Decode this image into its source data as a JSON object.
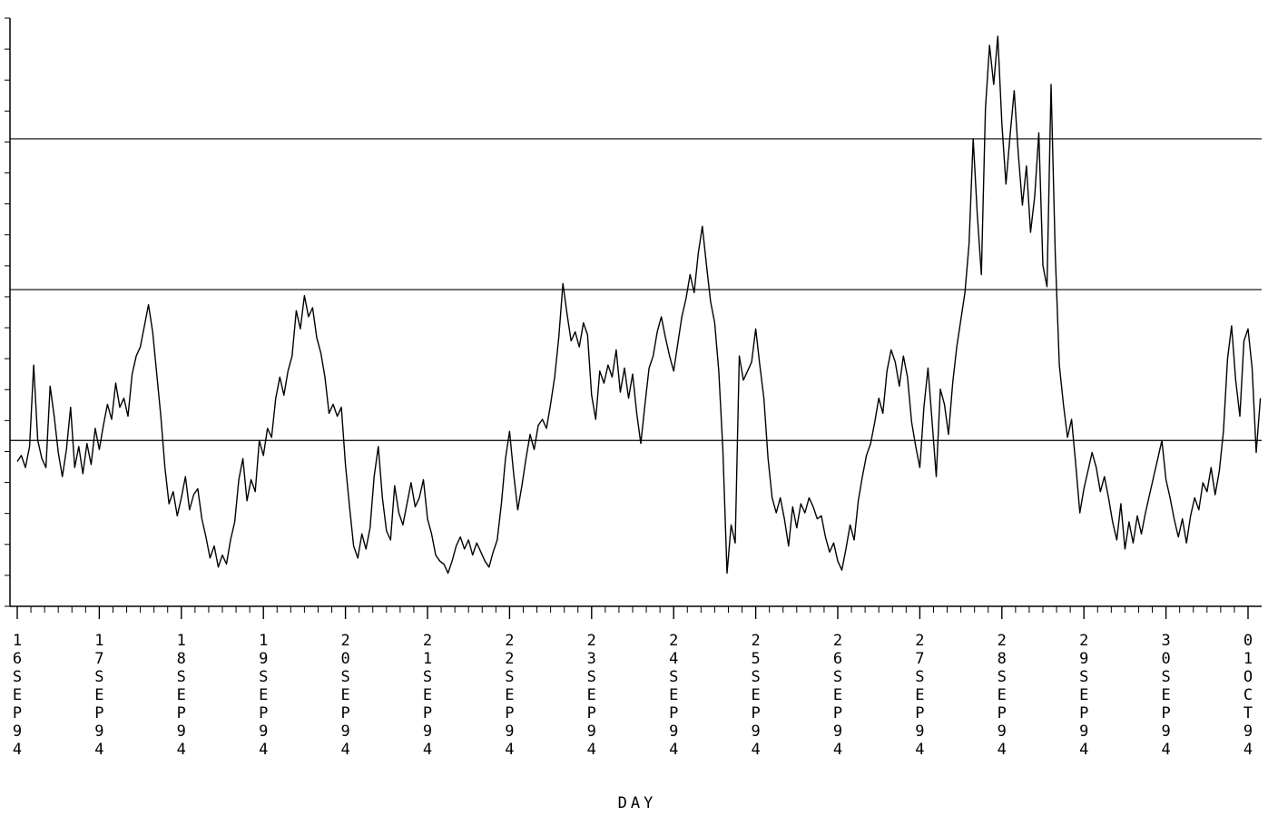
{
  "chart_data": {
    "type": "line",
    "title": "",
    "xlabel": "DAY",
    "ylabel": "",
    "x_tick_labels": [
      "16SEP94",
      "17SEP94",
      "18SEP94",
      "19SEP94",
      "20SEP94",
      "21SEP94",
      "22SEP94",
      "23SEP94",
      "24SEP94",
      "25SEP94",
      "26SEP94",
      "27SEP94",
      "28SEP94",
      "29SEP94",
      "30SEP94",
      "01OCT94"
    ],
    "xlim": [
      0,
      15.15
    ],
    "ylim": [
      0,
      19.5
    ],
    "y_minor_ticks": 19,
    "reference_lines": [
      5.5,
      10.5,
      15.5
    ],
    "grid": false,
    "series": [
      {
        "values": [
          [
            0.0,
            4.8
          ],
          [
            0.05,
            5.0
          ],
          [
            0.1,
            4.6
          ],
          [
            0.15,
            5.3
          ],
          [
            0.2,
            8.0
          ],
          [
            0.25,
            5.5
          ],
          [
            0.3,
            4.9
          ],
          [
            0.35,
            4.6
          ],
          [
            0.4,
            7.3
          ],
          [
            0.45,
            6.3
          ],
          [
            0.5,
            5.1
          ],
          [
            0.55,
            4.3
          ],
          [
            0.6,
            5.2
          ],
          [
            0.65,
            6.6
          ],
          [
            0.7,
            4.6
          ],
          [
            0.75,
            5.3
          ],
          [
            0.8,
            4.4
          ],
          [
            0.85,
            5.4
          ],
          [
            0.9,
            4.7
          ],
          [
            0.95,
            5.9
          ],
          [
            1.0,
            5.2
          ],
          [
            1.05,
            6.0
          ],
          [
            1.1,
            6.7
          ],
          [
            1.15,
            6.2
          ],
          [
            1.2,
            7.4
          ],
          [
            1.25,
            6.6
          ],
          [
            1.3,
            6.9
          ],
          [
            1.35,
            6.3
          ],
          [
            1.4,
            7.7
          ],
          [
            1.45,
            8.3
          ],
          [
            1.5,
            8.6
          ],
          [
            1.55,
            9.3
          ],
          [
            1.6,
            10.0
          ],
          [
            1.65,
            9.1
          ],
          [
            1.7,
            7.7
          ],
          [
            1.75,
            6.3
          ],
          [
            1.8,
            4.6
          ],
          [
            1.85,
            3.4
          ],
          [
            1.9,
            3.8
          ],
          [
            1.95,
            3.0
          ],
          [
            2.0,
            3.6
          ],
          [
            2.05,
            4.3
          ],
          [
            2.1,
            3.2
          ],
          [
            2.15,
            3.7
          ],
          [
            2.2,
            3.9
          ],
          [
            2.25,
            2.9
          ],
          [
            2.3,
            2.3
          ],
          [
            2.35,
            1.6
          ],
          [
            2.4,
            2.0
          ],
          [
            2.45,
            1.3
          ],
          [
            2.5,
            1.7
          ],
          [
            2.55,
            1.4
          ],
          [
            2.6,
            2.2
          ],
          [
            2.65,
            2.8
          ],
          [
            2.7,
            4.2
          ],
          [
            2.75,
            4.9
          ],
          [
            2.8,
            3.5
          ],
          [
            2.85,
            4.2
          ],
          [
            2.9,
            3.8
          ],
          [
            2.95,
            5.5
          ],
          [
            3.0,
            5.0
          ],
          [
            3.05,
            5.9
          ],
          [
            3.1,
            5.6
          ],
          [
            3.15,
            6.9
          ],
          [
            3.2,
            7.6
          ],
          [
            3.25,
            7.0
          ],
          [
            3.3,
            7.8
          ],
          [
            3.35,
            8.3
          ],
          [
            3.4,
            9.8
          ],
          [
            3.45,
            9.2
          ],
          [
            3.5,
            10.3
          ],
          [
            3.55,
            9.6
          ],
          [
            3.6,
            9.9
          ],
          [
            3.65,
            8.9
          ],
          [
            3.7,
            8.4
          ],
          [
            3.75,
            7.6
          ],
          [
            3.8,
            6.4
          ],
          [
            3.85,
            6.7
          ],
          [
            3.9,
            6.3
          ],
          [
            3.95,
            6.6
          ],
          [
            4.0,
            4.7
          ],
          [
            4.05,
            3.3
          ],
          [
            4.1,
            2.0
          ],
          [
            4.15,
            1.6
          ],
          [
            4.2,
            2.4
          ],
          [
            4.25,
            1.9
          ],
          [
            4.3,
            2.6
          ],
          [
            4.35,
            4.3
          ],
          [
            4.4,
            5.3
          ],
          [
            4.45,
            3.6
          ],
          [
            4.5,
            2.5
          ],
          [
            4.55,
            2.2
          ],
          [
            4.6,
            4.0
          ],
          [
            4.65,
            3.1
          ],
          [
            4.7,
            2.7
          ],
          [
            4.75,
            3.4
          ],
          [
            4.8,
            4.1
          ],
          [
            4.85,
            3.3
          ],
          [
            4.9,
            3.6
          ],
          [
            4.95,
            4.2
          ],
          [
            5.0,
            2.9
          ],
          [
            5.05,
            2.4
          ],
          [
            5.1,
            1.7
          ],
          [
            5.15,
            1.5
          ],
          [
            5.2,
            1.4
          ],
          [
            5.25,
            1.1
          ],
          [
            5.3,
            1.5
          ],
          [
            5.35,
            2.0
          ],
          [
            5.4,
            2.3
          ],
          [
            5.45,
            1.9
          ],
          [
            5.5,
            2.2
          ],
          [
            5.55,
            1.7
          ],
          [
            5.6,
            2.1
          ],
          [
            5.65,
            1.8
          ],
          [
            5.7,
            1.5
          ],
          [
            5.75,
            1.3
          ],
          [
            5.8,
            1.8
          ],
          [
            5.85,
            2.2
          ],
          [
            5.9,
            3.4
          ],
          [
            5.95,
            4.9
          ],
          [
            6.0,
            5.8
          ],
          [
            6.05,
            4.4
          ],
          [
            6.1,
            3.2
          ],
          [
            6.15,
            4.0
          ],
          [
            6.2,
            4.9
          ],
          [
            6.25,
            5.7
          ],
          [
            6.3,
            5.2
          ],
          [
            6.35,
            6.0
          ],
          [
            6.4,
            6.2
          ],
          [
            6.45,
            5.9
          ],
          [
            6.5,
            6.7
          ],
          [
            6.55,
            7.6
          ],
          [
            6.6,
            8.9
          ],
          [
            6.65,
            10.7
          ],
          [
            6.7,
            9.7
          ],
          [
            6.75,
            8.8
          ],
          [
            6.8,
            9.1
          ],
          [
            6.85,
            8.6
          ],
          [
            6.9,
            9.4
          ],
          [
            6.95,
            9.0
          ],
          [
            7.0,
            7.0
          ],
          [
            7.05,
            6.2
          ],
          [
            7.1,
            7.8
          ],
          [
            7.15,
            7.4
          ],
          [
            7.2,
            8.0
          ],
          [
            7.25,
            7.6
          ],
          [
            7.3,
            8.5
          ],
          [
            7.35,
            7.1
          ],
          [
            7.4,
            7.9
          ],
          [
            7.45,
            6.9
          ],
          [
            7.5,
            7.7
          ],
          [
            7.55,
            6.4
          ],
          [
            7.6,
            5.4
          ],
          [
            7.65,
            6.7
          ],
          [
            7.7,
            7.9
          ],
          [
            7.75,
            8.3
          ],
          [
            7.8,
            9.1
          ],
          [
            7.85,
            9.6
          ],
          [
            7.9,
            8.9
          ],
          [
            7.95,
            8.3
          ],
          [
            8.0,
            7.8
          ],
          [
            8.05,
            8.7
          ],
          [
            8.1,
            9.6
          ],
          [
            8.15,
            10.2
          ],
          [
            8.2,
            11.0
          ],
          [
            8.25,
            10.4
          ],
          [
            8.3,
            11.7
          ],
          [
            8.35,
            12.6
          ],
          [
            8.4,
            11.3
          ],
          [
            8.45,
            10.1
          ],
          [
            8.5,
            9.4
          ],
          [
            8.55,
            7.8
          ],
          [
            8.6,
            5.2
          ],
          [
            8.65,
            1.1
          ],
          [
            8.7,
            2.7
          ],
          [
            8.75,
            2.1
          ],
          [
            8.8,
            8.3
          ],
          [
            8.85,
            7.5
          ],
          [
            8.9,
            7.8
          ],
          [
            8.95,
            8.1
          ],
          [
            9.0,
            9.2
          ],
          [
            9.05,
            8.0
          ],
          [
            9.1,
            6.9
          ],
          [
            9.15,
            4.9
          ],
          [
            9.2,
            3.6
          ],
          [
            9.25,
            3.1
          ],
          [
            9.3,
            3.6
          ],
          [
            9.35,
            2.9
          ],
          [
            9.4,
            2.0
          ],
          [
            9.45,
            3.3
          ],
          [
            9.5,
            2.6
          ],
          [
            9.55,
            3.4
          ],
          [
            9.6,
            3.1
          ],
          [
            9.65,
            3.6
          ],
          [
            9.7,
            3.3
          ],
          [
            9.75,
            2.9
          ],
          [
            9.8,
            3.0
          ],
          [
            9.85,
            2.3
          ],
          [
            9.9,
            1.8
          ],
          [
            9.95,
            2.1
          ],
          [
            10.0,
            1.5
          ],
          [
            10.05,
            1.2
          ],
          [
            10.1,
            1.9
          ],
          [
            10.15,
            2.7
          ],
          [
            10.2,
            2.2
          ],
          [
            10.25,
            3.5
          ],
          [
            10.3,
            4.3
          ],
          [
            10.35,
            5.0
          ],
          [
            10.4,
            5.4
          ],
          [
            10.45,
            6.1
          ],
          [
            10.5,
            6.9
          ],
          [
            10.55,
            6.4
          ],
          [
            10.6,
            7.8
          ],
          [
            10.65,
            8.5
          ],
          [
            10.7,
            8.1
          ],
          [
            10.75,
            7.3
          ],
          [
            10.8,
            8.3
          ],
          [
            10.85,
            7.6
          ],
          [
            10.9,
            6.1
          ],
          [
            10.95,
            5.3
          ],
          [
            11.0,
            4.6
          ],
          [
            11.05,
            6.6
          ],
          [
            11.1,
            7.9
          ],
          [
            11.15,
            6.1
          ],
          [
            11.2,
            4.3
          ],
          [
            11.25,
            7.2
          ],
          [
            11.3,
            6.7
          ],
          [
            11.35,
            5.7
          ],
          [
            11.4,
            7.4
          ],
          [
            11.45,
            8.6
          ],
          [
            11.5,
            9.5
          ],
          [
            11.55,
            10.4
          ],
          [
            11.6,
            12.0
          ],
          [
            11.65,
            15.5
          ],
          [
            11.7,
            13.0
          ],
          [
            11.75,
            11.0
          ],
          [
            11.8,
            16.5
          ],
          [
            11.85,
            18.6
          ],
          [
            11.9,
            17.3
          ],
          [
            11.95,
            18.9
          ],
          [
            12.0,
            16.0
          ],
          [
            12.05,
            14.0
          ],
          [
            12.1,
            15.6
          ],
          [
            12.15,
            17.1
          ],
          [
            12.2,
            15.0
          ],
          [
            12.25,
            13.3
          ],
          [
            12.3,
            14.6
          ],
          [
            12.35,
            12.4
          ],
          [
            12.4,
            13.6
          ],
          [
            12.45,
            15.7
          ],
          [
            12.5,
            11.3
          ],
          [
            12.55,
            10.6
          ],
          [
            12.6,
            17.3
          ],
          [
            12.65,
            11.7
          ],
          [
            12.7,
            8.0
          ],
          [
            12.75,
            6.7
          ],
          [
            12.8,
            5.6
          ],
          [
            12.85,
            6.2
          ],
          [
            12.9,
            4.7
          ],
          [
            12.95,
            3.1
          ],
          [
            13.0,
            3.9
          ],
          [
            13.05,
            4.5
          ],
          [
            13.1,
            5.1
          ],
          [
            13.15,
            4.6
          ],
          [
            13.2,
            3.8
          ],
          [
            13.25,
            4.3
          ],
          [
            13.3,
            3.6
          ],
          [
            13.35,
            2.8
          ],
          [
            13.4,
            2.2
          ],
          [
            13.45,
            3.4
          ],
          [
            13.5,
            1.9
          ],
          [
            13.55,
            2.8
          ],
          [
            13.6,
            2.1
          ],
          [
            13.65,
            3.0
          ],
          [
            13.7,
            2.4
          ],
          [
            13.75,
            3.1
          ],
          [
            13.8,
            3.7
          ],
          [
            13.85,
            4.3
          ],
          [
            13.9,
            4.9
          ],
          [
            13.95,
            5.5
          ],
          [
            14.0,
            4.2
          ],
          [
            14.05,
            3.6
          ],
          [
            14.1,
            2.9
          ],
          [
            14.15,
            2.3
          ],
          [
            14.2,
            2.9
          ],
          [
            14.25,
            2.1
          ],
          [
            14.3,
            3.0
          ],
          [
            14.35,
            3.6
          ],
          [
            14.4,
            3.2
          ],
          [
            14.45,
            4.1
          ],
          [
            14.5,
            3.8
          ],
          [
            14.55,
            4.6
          ],
          [
            14.6,
            3.7
          ],
          [
            14.65,
            4.5
          ],
          [
            14.7,
            5.8
          ],
          [
            14.75,
            8.2
          ],
          [
            14.8,
            9.3
          ],
          [
            14.85,
            7.5
          ],
          [
            14.9,
            6.3
          ],
          [
            14.95,
            8.8
          ],
          [
            15.0,
            9.2
          ],
          [
            15.05,
            7.9
          ],
          [
            15.1,
            5.1
          ],
          [
            15.15,
            6.9
          ]
        ]
      }
    ]
  }
}
